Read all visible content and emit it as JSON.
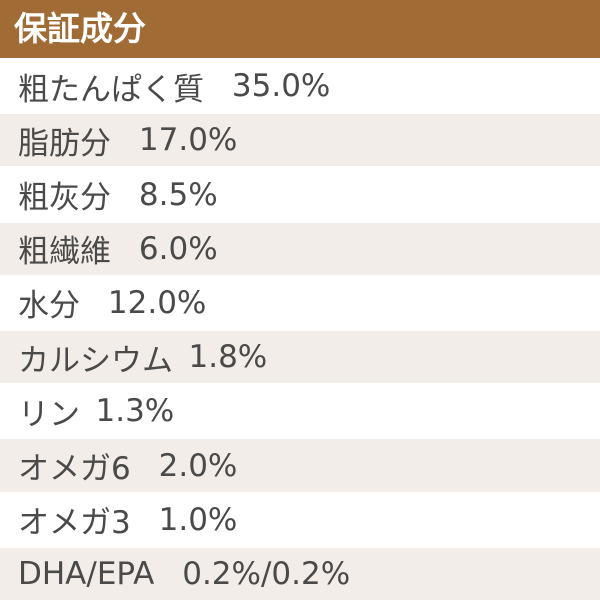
{
  "title": "保証成分",
  "colors": {
    "header": "#a06b35",
    "alt_row": "#f2ede8",
    "text": "#4a4a4a"
  },
  "rows": [
    {
      "label": "粗たんぱく質",
      "value": "35.0%"
    },
    {
      "label": "脂肪分",
      "value": "17.0%"
    },
    {
      "label": "粗灰分",
      "value": "8.5%"
    },
    {
      "label": "粗繊維",
      "value": "6.0%"
    },
    {
      "label": "水分",
      "value": "12.0%"
    },
    {
      "label": "カルシウム",
      "value": "1.8%"
    },
    {
      "label": "リン",
      "value": "1.3%"
    },
    {
      "label": "オメガ6",
      "value": "2.0%"
    },
    {
      "label": "オメガ3",
      "value": "1.0%"
    },
    {
      "label": "DHA/EPA",
      "value": "0.2%/0.2%"
    }
  ]
}
